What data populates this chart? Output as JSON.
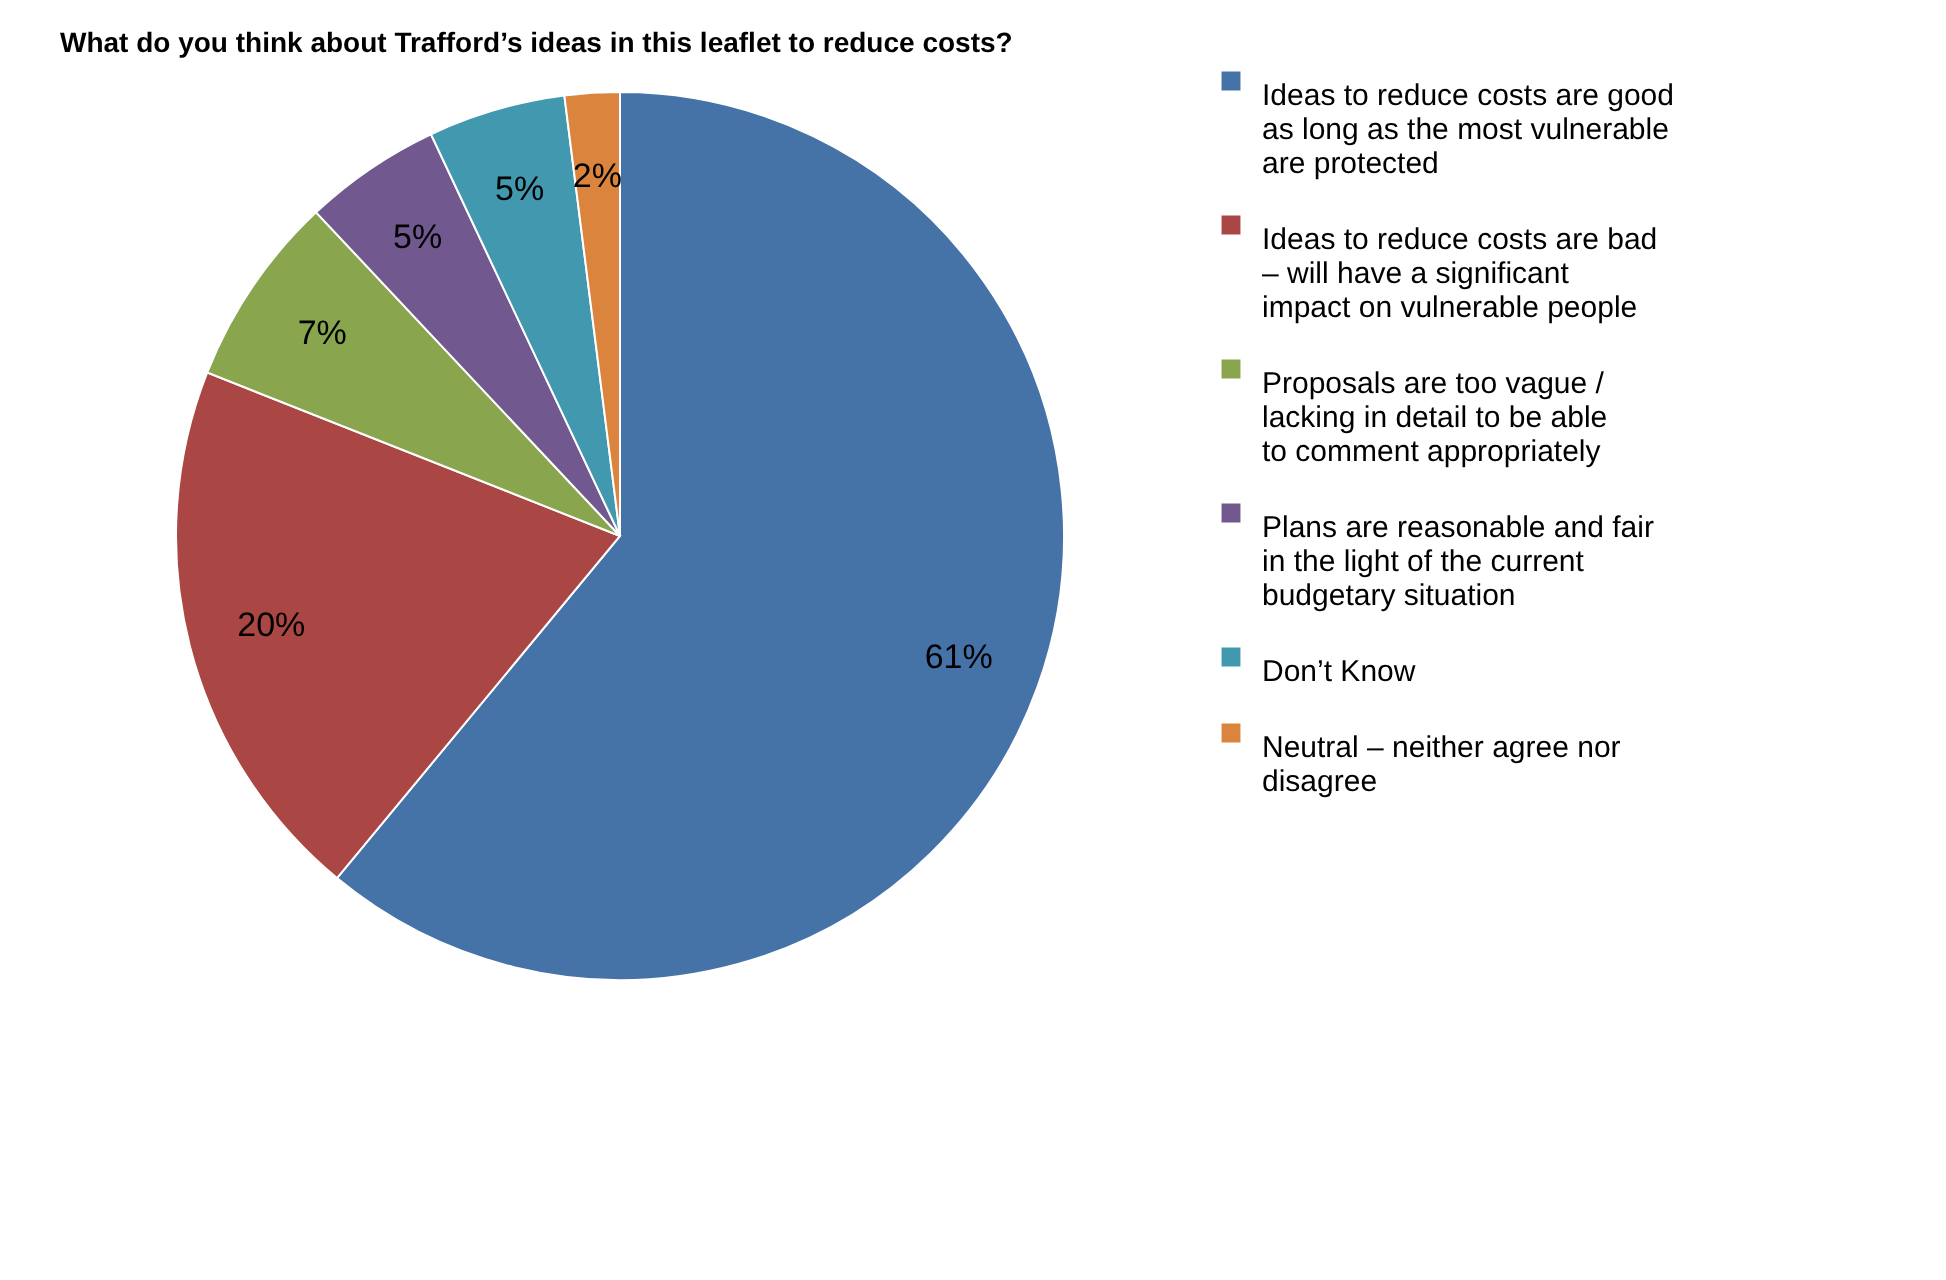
{
  "chart_data": {
    "type": "pie",
    "title": "What do you think about Trafford’s ideas in this leaflet to reduce costs?",
    "categories": [
      "Ideas to reduce costs are good as long as the most vulnerable are protected",
      "Ideas to reduce costs are bad – will have a significant impact on vulnerable people",
      "Proposals are too vague / lacking in detail to be able to comment appropriately",
      "Plans are reasonable and fair in the light of the current budgetary situation",
      "Don’t Know",
      "Neutral – neither agree nor disagree"
    ],
    "values": [
      61,
      20,
      7,
      5,
      5,
      2
    ],
    "colors": [
      "#4572a7",
      "#aa4643",
      "#89a54e",
      "#71588f",
      "#4198af",
      "#db843d"
    ],
    "value_labels": [
      "61%",
      "20%",
      "7%",
      "5%",
      "5%",
      "2%"
    ],
    "legend": "right"
  }
}
